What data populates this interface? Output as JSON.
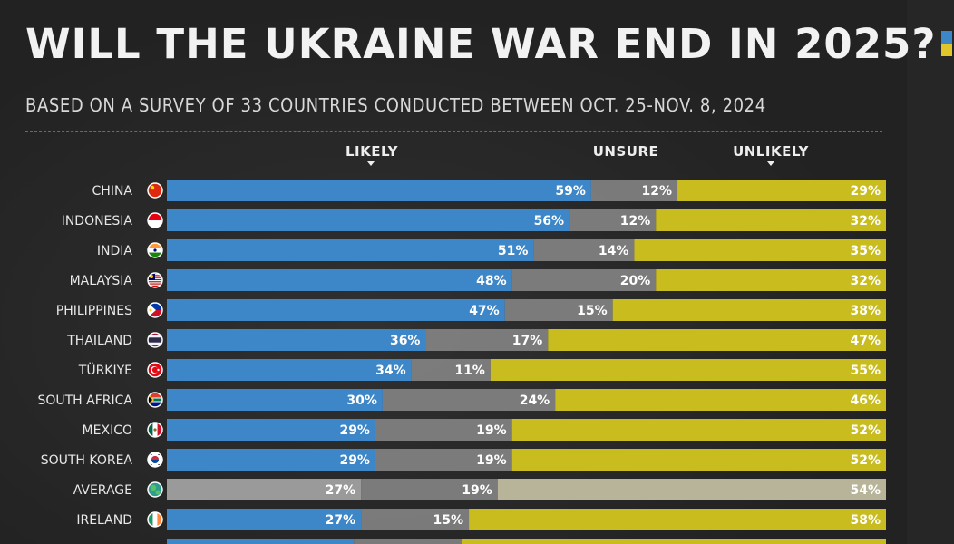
{
  "title": "WILL THE UKRAINE WAR END IN 2025?",
  "subtitle": "BASED ON A SURVEY OF 33 COUNTRIES CONDUCTED BETWEEN OCT. 25-NOV. 8, 2024",
  "colors": {
    "likely": "#3d86c8",
    "unsure": "#8a8a8a",
    "unlikely": "#c9bc1e",
    "average_likely": "#9a9a9a",
    "average_unlikely": "#b8b49a"
  },
  "legend": {
    "likely": "LIKELY",
    "unsure": "UNSURE",
    "unlikely": "UNLIKELY"
  },
  "chart_data": {
    "type": "bar",
    "stacked": true,
    "orientation": "horizontal",
    "xlim": [
      0,
      100
    ],
    "unit": "%",
    "categories": [
      "CHINA",
      "INDONESIA",
      "INDIA",
      "MALAYSIA",
      "PHILIPPINES",
      "THAILAND",
      "TÜRKIYE",
      "SOUTH AFRICA",
      "MEXICO",
      "SOUTH KOREA",
      "AVERAGE",
      "IRELAND"
    ],
    "flags": [
      "china-flag-icon",
      "indonesia-flag-icon",
      "india-flag-icon",
      "malaysia-flag-icon",
      "philippines-flag-icon",
      "thailand-flag-icon",
      "turkiye-flag-icon",
      "south-africa-flag-icon",
      "mexico-flag-icon",
      "south-korea-flag-icon",
      "globe-icon",
      "ireland-flag-icon"
    ],
    "series": [
      {
        "name": "LIKELY",
        "values": [
          59,
          56,
          51,
          48,
          47,
          36,
          34,
          30,
          29,
          29,
          27,
          27
        ]
      },
      {
        "name": "UNSURE",
        "values": [
          12,
          12,
          14,
          20,
          15,
          17,
          11,
          24,
          19,
          19,
          19,
          15
        ]
      },
      {
        "name": "UNLIKELY",
        "values": [
          29,
          32,
          35,
          32,
          38,
          47,
          55,
          46,
          52,
          52,
          54,
          58
        ]
      }
    ]
  }
}
